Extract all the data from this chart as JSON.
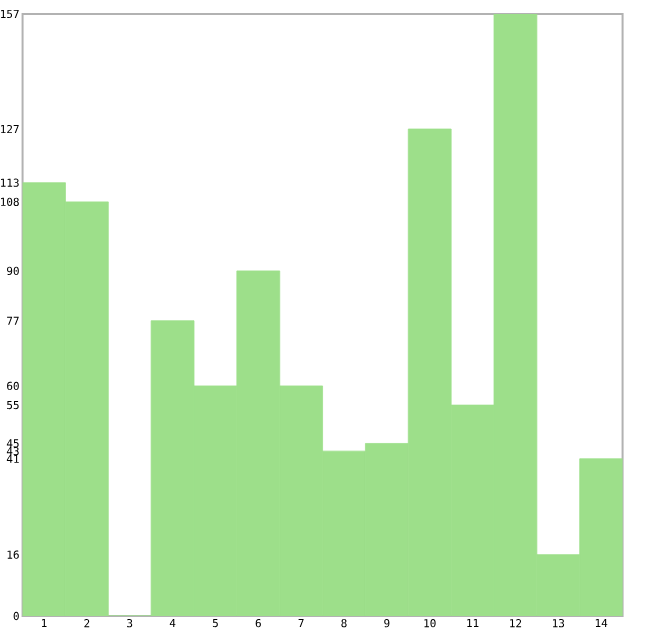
{
  "chart_data": {
    "type": "bar",
    "categories": [
      "1",
      "2",
      "3",
      "4",
      "5",
      "6",
      "7",
      "8",
      "9",
      "10",
      "11",
      "12",
      "13",
      "14"
    ],
    "values": [
      113,
      108,
      0,
      77,
      60,
      90,
      60,
      43,
      45,
      127,
      55,
      157,
      16,
      41
    ],
    "color": "#9ddf8a",
    "ylim": [
      0,
      157
    ],
    "yticks": [
      0,
      16,
      41,
      43,
      45,
      55,
      60,
      77,
      90,
      108,
      113,
      127,
      157
    ],
    "grid": false
  }
}
